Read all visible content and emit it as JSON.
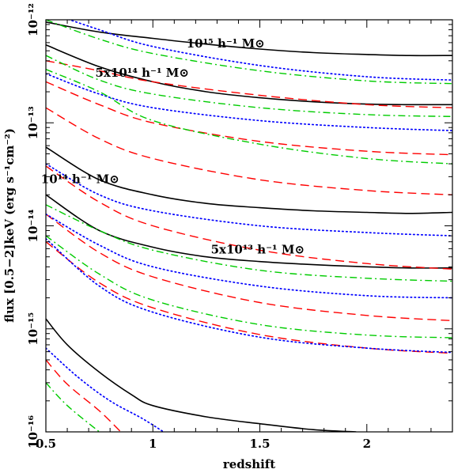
{
  "chart_data": {
    "type": "line",
    "title": "",
    "xlabel": "redshift",
    "ylabel": "flux [0.5−2]keV (erg s⁻¹cm⁻²)",
    "xlim": [
      0.5,
      2.4
    ],
    "ylim": [
      1e-16,
      1e-12
    ],
    "yscale": "log",
    "grid": false,
    "x_ticks": [
      {
        "value": 0.5,
        "label": "0.5"
      },
      {
        "value": 1,
        "label": "1"
      },
      {
        "value": 1.5,
        "label": "1.5"
      },
      {
        "value": 2,
        "label": "2"
      }
    ],
    "y_ticks": [
      {
        "value": 1e-12,
        "label": "10⁻¹²"
      },
      {
        "value": 1e-13,
        "label": "10⁻¹³"
      },
      {
        "value": 1e-14,
        "label": "10⁻¹⁴"
      },
      {
        "value": 1e-15,
        "label": "10⁻¹⁵"
      },
      {
        "value": 1e-16,
        "label": "10⁻¹⁶"
      }
    ],
    "annotations": [
      {
        "text": "10¹⁵ h⁻¹ M⊙",
        "x": 1.34,
        "y": 5.4e-13
      },
      {
        "text": "5x10¹⁴ h⁻¹ M⊙",
        "x": 0.95,
        "y": 2.8e-13
      },
      {
        "text": "10¹⁴ h⁻¹ M⊙",
        "x": 0.66,
        "y": 2.6e-14
      },
      {
        "text": "5x10¹³ h⁻¹ M⊙",
        "x": 1.49,
        "y": 5.4e-15
      }
    ],
    "series": [
      {
        "style": "solid",
        "color": "#000000",
        "x": [
          0.5,
          0.75,
          1.0,
          1.25,
          1.5,
          1.75,
          2.0,
          2.2,
          2.4
        ],
        "y": [
          9.5e-13,
          7.6e-13,
          6.6e-13,
          5.8e-13,
          5.2e-13,
          4.8e-13,
          4.6e-13,
          4.5e-13,
          4.5e-13
        ]
      },
      {
        "style": "solid",
        "color": "#000000",
        "x": [
          0.5,
          0.75,
          1.0,
          1.25,
          1.5,
          1.75,
          2.0,
          2.2,
          2.4
        ],
        "y": [
          5.7e-13,
          3.5e-13,
          2.5e-13,
          2e-13,
          1.75e-13,
          1.6e-13,
          1.52e-13,
          1.5e-13,
          1.5e-13
        ]
      },
      {
        "style": "solid",
        "color": "#000000",
        "x": [
          0.5,
          0.75,
          1.0,
          1.25,
          1.5,
          1.75,
          2.0,
          2.2,
          2.4
        ],
        "y": [
          5.8e-14,
          2.8e-14,
          2e-14,
          1.65e-14,
          1.5e-14,
          1.4e-14,
          1.35e-14,
          1.32e-14,
          1.35e-14
        ]
      },
      {
        "style": "solid",
        "color": "#000000",
        "x": [
          0.5,
          0.75,
          1.0,
          1.25,
          1.5,
          1.75,
          2.0,
          2.2,
          2.4
        ],
        "y": [
          2e-14,
          9e-15,
          6.2e-15,
          5e-15,
          4.5e-15,
          4.2e-15,
          4e-15,
          3.9e-15,
          3.9e-15
        ]
      },
      {
        "style": "solid",
        "color": "#000000",
        "x": [
          0.5,
          0.6,
          0.75,
          0.9,
          1.0,
          1.25,
          1.5,
          1.75,
          1.95
        ],
        "y": [
          1.25e-15,
          7e-16,
          3.8e-16,
          2.3e-16,
          1.8e-16,
          1.4e-16,
          1.2e-16,
          1.05e-16,
          1e-16
        ]
      },
      {
        "style": "dashed",
        "color": "#ff0000",
        "x": [
          0.5,
          0.75,
          1.0,
          1.5,
          2.0,
          2.4
        ],
        "y": [
          4e-13,
          3.2e-13,
          2.5e-13,
          1.85e-13,
          1.5e-13,
          1.4e-13
        ]
      },
      {
        "style": "dashed",
        "color": "#ff0000",
        "x": [
          0.5,
          0.75,
          1.0,
          1.5,
          2.0,
          2.4
        ],
        "y": [
          2.5e-13,
          1.5e-13,
          1e-13,
          6.6e-14,
          5.3e-14,
          4.9e-14
        ]
      },
      {
        "style": "dashed",
        "color": "#ff0000",
        "x": [
          0.5,
          0.75,
          1.0,
          1.5,
          2.0,
          2.4
        ],
        "y": [
          1.4e-13,
          7e-14,
          4.5e-14,
          2.8e-14,
          2.2e-14,
          2e-14
        ]
      },
      {
        "style": "dashed",
        "color": "#ff0000",
        "x": [
          0.5,
          0.75,
          1.0,
          1.5,
          2.0,
          2.4
        ],
        "y": [
          3.8e-14,
          1.7e-14,
          1e-14,
          5.8e-15,
          4.3e-15,
          3.8e-15
        ]
      },
      {
        "style": "dashed",
        "color": "#ff0000",
        "x": [
          0.5,
          0.75,
          1.0,
          1.5,
          2.0,
          2.4
        ],
        "y": [
          1.3e-14,
          5.5e-15,
          3.2e-15,
          1.8e-15,
          1.35e-15,
          1.2e-15
        ]
      },
      {
        "style": "dashed",
        "color": "#ff0000",
        "x": [
          0.5,
          0.75,
          1.0,
          1.5,
          2.0,
          2.4
        ],
        "y": [
          7e-15,
          2.8e-15,
          1.6e-15,
          8.8e-16,
          6.5e-16,
          5.8e-16
        ]
      },
      {
        "style": "dashed",
        "color": "#ff0000",
        "x": [
          0.5,
          0.6,
          0.75,
          0.85
        ],
        "y": [
          5e-16,
          2.9e-16,
          1.6e-16,
          1e-16
        ]
      },
      {
        "style": "dotted",
        "color": "#0000ff",
        "x": [
          0.5,
          0.75,
          1.0,
          1.5,
          2.0,
          2.4
        ],
        "y": [
          1.2e-12,
          8e-13,
          5.5e-13,
          3.6e-13,
          2.8e-13,
          2.6e-13
        ]
      },
      {
        "style": "dotted",
        "color": "#0000ff",
        "x": [
          0.5,
          0.75,
          1.0,
          1.5,
          2.0,
          2.4
        ],
        "y": [
          3e-13,
          1.9e-13,
          1.4e-13,
          1.05e-13,
          9e-14,
          8.4e-14
        ]
      },
      {
        "style": "dotted",
        "color": "#0000ff",
        "x": [
          0.5,
          0.75,
          1.0,
          1.5,
          2.0,
          2.4
        ],
        "y": [
          4e-14,
          2e-14,
          1.4e-14,
          1e-14,
          8.6e-15,
          8e-15
        ]
      },
      {
        "style": "dotted",
        "color": "#0000ff",
        "x": [
          0.5,
          0.75,
          1.0,
          1.5,
          2.0,
          2.4
        ],
        "y": [
          1.3e-14,
          6.5e-15,
          4e-15,
          2.6e-15,
          2.1e-15,
          2e-15
        ]
      },
      {
        "style": "dotted",
        "color": "#0000ff",
        "x": [
          0.5,
          0.75,
          1.0,
          1.5,
          2.0,
          2.4
        ],
        "y": [
          7.5e-15,
          2.6e-15,
          1.45e-15,
          8.3e-16,
          6.5e-16,
          5.9e-16
        ]
      },
      {
        "style": "dotted",
        "color": "#0000ff",
        "x": [
          0.5,
          0.65,
          0.8,
          0.95,
          1.05
        ],
        "y": [
          6.5e-16,
          3.4e-16,
          2e-16,
          1.35e-16,
          1e-16
        ]
      },
      {
        "style": "dashdot",
        "color": "#00cc00",
        "x": [
          0.5,
          0.75,
          1.0,
          1.5,
          2.0,
          2.4
        ],
        "y": [
          1e-12,
          6.5e-13,
          4.7e-13,
          3.2e-13,
          2.55e-13,
          2.4e-13
        ]
      },
      {
        "style": "dashdot",
        "color": "#00cc00",
        "x": [
          0.5,
          0.75,
          1.0,
          1.5,
          2.0,
          2.4
        ],
        "y": [
          4.5e-13,
          2.6e-13,
          1.9e-13,
          1.4e-13,
          1.2e-13,
          1.15e-13
        ]
      },
      {
        "style": "dashdot",
        "color": "#00cc00",
        "x": [
          0.5,
          0.75,
          1.0,
          1.5,
          2.0,
          2.4
        ],
        "y": [
          3.3e-13,
          2e-13,
          1.05e-13,
          6.2e-14,
          4.5e-14,
          4e-14
        ]
      },
      {
        "style": "dashdot",
        "color": "#00cc00",
        "x": [
          0.5,
          0.75,
          1.0,
          1.5,
          2.0,
          2.4
        ],
        "y": [
          1.6e-14,
          9e-15,
          5.8e-15,
          3.7e-15,
          3.1e-15,
          2.9e-15
        ]
      },
      {
        "style": "dashdot",
        "color": "#00cc00",
        "x": [
          0.5,
          0.75,
          1.0,
          1.5,
          2.0,
          2.4
        ],
        "y": [
          8e-15,
          3.4e-15,
          1.9e-15,
          1.1e-15,
          8.7e-16,
          8.2e-16
        ]
      },
      {
        "style": "dashdot",
        "color": "#00cc00",
        "x": [
          0.5,
          0.6,
          0.75
        ],
        "y": [
          3e-16,
          1.8e-16,
          1e-16
        ]
      }
    ]
  }
}
